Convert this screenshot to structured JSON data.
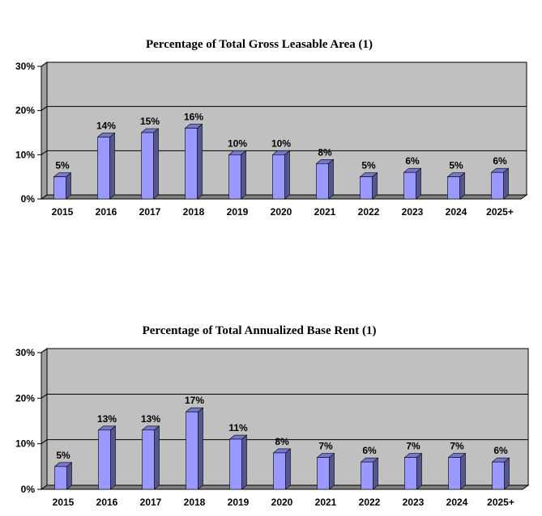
{
  "colors": {
    "bar_front": "#9999ff",
    "bar_side": "#55558f",
    "bar_top": "#7777cc",
    "plot_back": "#c0c0c0",
    "plot_side": "#a0a0a0",
    "floor": "#808080",
    "grid": "#000000"
  },
  "chart_data": [
    {
      "type": "bar",
      "title": "Percentage of Total Gross Leasable Area (1)",
      "categories": [
        "2015",
        "2016",
        "2017",
        "2018",
        "2019",
        "2020",
        "2021",
        "2022",
        "2023",
        "2024",
        "2025+"
      ],
      "values": [
        5,
        14,
        15,
        16,
        10,
        10,
        8,
        5,
        6,
        5,
        6
      ],
      "data_labels": [
        "5%",
        "14%",
        "15%",
        "16%",
        "10%",
        "10%",
        "8%",
        "5%",
        "6%",
        "5%",
        "6%"
      ],
      "y_ticks": [
        "0%",
        "10%",
        "20%",
        "30%"
      ],
      "ylim": [
        0,
        30
      ],
      "xlabel": "",
      "ylabel": "",
      "grid": true,
      "legend": "none"
    },
    {
      "type": "bar",
      "title": "Percentage of Total Annualized Base Rent (1)",
      "categories": [
        "2015",
        "2016",
        "2017",
        "2018",
        "2019",
        "2020",
        "2021",
        "2022",
        "2023",
        "2024",
        "2025+"
      ],
      "values": [
        5,
        13,
        13,
        17,
        11,
        8,
        7,
        6,
        7,
        7,
        6
      ],
      "data_labels": [
        "5%",
        "13%",
        "13%",
        "17%",
        "11%",
        "8%",
        "7%",
        "6%",
        "7%",
        "7%",
        "6%"
      ],
      "y_ticks": [
        "0%",
        "10%",
        "20%",
        "30%"
      ],
      "ylim": [
        0,
        30
      ],
      "xlabel": "",
      "ylabel": "",
      "grid": true,
      "legend": "none"
    }
  ]
}
